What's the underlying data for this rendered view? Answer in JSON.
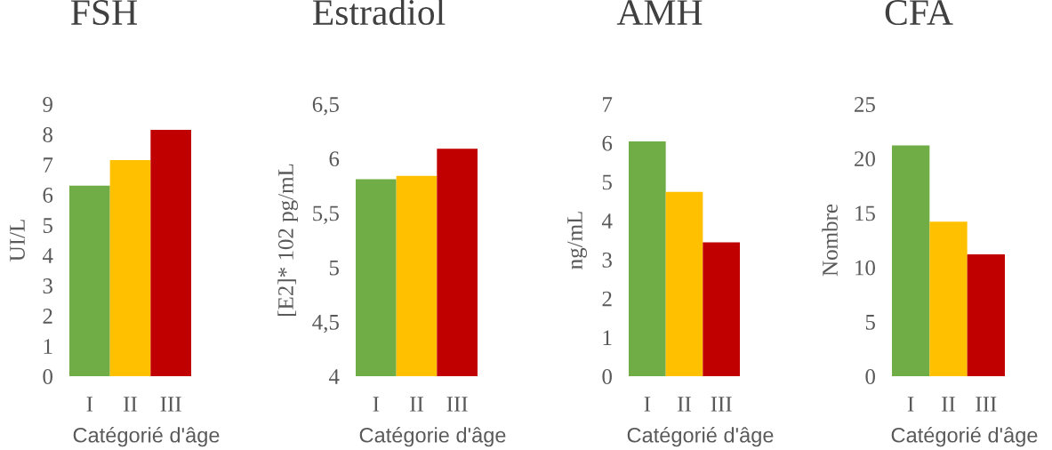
{
  "chart_data": [
    {
      "type": "bar",
      "title": "FSH",
      "xlabel": "Catégorié d'âge",
      "ylabel": "UI/L",
      "categories": [
        "I",
        "II",
        "III"
      ],
      "values": [
        6.3,
        7.15,
        8.15
      ],
      "colors": [
        "#70ad47",
        "#ffc000",
        "#c00000"
      ],
      "ylim": [
        0,
        9
      ],
      "yticks": [
        0,
        1,
        2,
        3,
        4,
        5,
        6,
        7,
        8,
        9
      ]
    },
    {
      "type": "bar",
      "title": "Estradiol",
      "xlabel": "Catégorie d'âge",
      "ylabel": "[E2]* 102 pg/mL",
      "categories": [
        "I",
        "II",
        "III"
      ],
      "values": [
        5.81,
        5.84,
        6.09
      ],
      "colors": [
        "#70ad47",
        "#ffc000",
        "#c00000"
      ],
      "ylim": [
        4,
        6.5
      ],
      "yticks": [
        4,
        {
          "value": 4.5,
          "label": "4,5"
        },
        5,
        {
          "value": 5.5,
          "label": "5,5"
        },
        6,
        {
          "value": 6.5,
          "label": "6,5"
        }
      ]
    },
    {
      "type": "bar",
      "title": "AMH",
      "xlabel": "Catégorié d'âge",
      "ylabel": "ng/mL",
      "categories": [
        "I",
        "II",
        "III"
      ],
      "values": [
        6.04,
        4.74,
        3.44
      ],
      "colors": [
        "#70ad47",
        "#ffc000",
        "#c00000"
      ],
      "ylim": [
        0,
        7
      ],
      "yticks": [
        0,
        1,
        2,
        3,
        4,
        5,
        6,
        7
      ]
    },
    {
      "type": "bar",
      "title": "CFA",
      "xlabel": "Catégorié d'âge",
      "ylabel": "Nombre",
      "categories": [
        "I",
        "II",
        "III"
      ],
      "values": [
        21.2,
        14.2,
        11.2
      ],
      "colors": [
        "#70ad47",
        "#ffc000",
        "#c00000"
      ],
      "ylim": [
        0,
        25
      ],
      "yticks": [
        0,
        5,
        10,
        15,
        20,
        25
      ]
    }
  ]
}
